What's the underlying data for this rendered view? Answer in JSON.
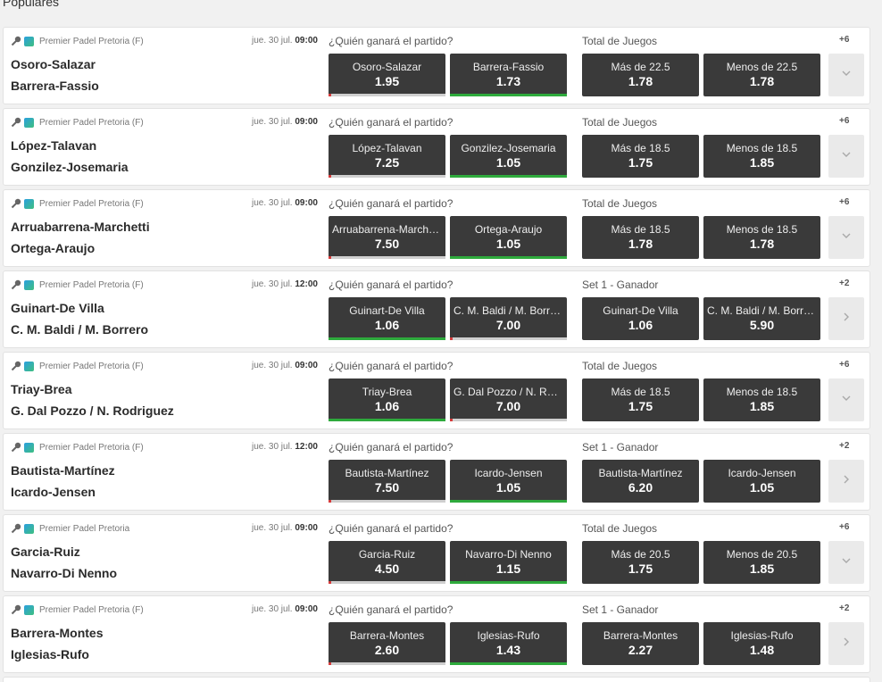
{
  "section_title": "Populares",
  "matches": [
    {
      "tournament": "Premier Padel Pretoria (F)",
      "date": "jue. 30 jul.",
      "time": "09:00",
      "team1": "Osoro-Salazar",
      "team2": "Barrera-Fassio",
      "market1": "¿Quién ganará el partido?",
      "market2": "Total de Juegos",
      "more": "+6",
      "expand_icon": "chevron-down-icon",
      "odds": [
        {
          "label": "Osoro-Salazar",
          "value": "1.95",
          "trend": "down"
        },
        {
          "label": "Barrera-Fassio",
          "value": "1.73",
          "trend": "up"
        },
        {
          "label": "Más de 22.5",
          "value": "1.78",
          "trend": ""
        },
        {
          "label": "Menos de 22.5",
          "value": "1.78",
          "trend": ""
        }
      ]
    },
    {
      "tournament": "Premier Padel Pretoria (F)",
      "date": "jue. 30 jul.",
      "time": "09:00",
      "team1": "López-Talavan",
      "team2": "Gonzilez-Josemaria",
      "market1": "¿Quién ganará el partido?",
      "market2": "Total de Juegos",
      "more": "+6",
      "expand_icon": "chevron-down-icon",
      "odds": [
        {
          "label": "López-Talavan",
          "value": "7.25",
          "trend": "down"
        },
        {
          "label": "Gonzilez-Josemaria",
          "value": "1.05",
          "trend": "up"
        },
        {
          "label": "Más de 18.5",
          "value": "1.75",
          "trend": ""
        },
        {
          "label": "Menos de 18.5",
          "value": "1.85",
          "trend": ""
        }
      ]
    },
    {
      "tournament": "Premier Padel Pretoria (F)",
      "date": "jue. 30 jul.",
      "time": "09:00",
      "team1": "Arruabarrena-Marchetti",
      "team2": "Ortega-Araujo",
      "market1": "¿Quién ganará el partido?",
      "market2": "Total de Juegos",
      "more": "+6",
      "expand_icon": "chevron-down-icon",
      "odds": [
        {
          "label": "Arruabarrena-Marchetti",
          "value": "7.50",
          "trend": "down"
        },
        {
          "label": "Ortega-Araujo",
          "value": "1.05",
          "trend": "up"
        },
        {
          "label": "Más de 18.5",
          "value": "1.78",
          "trend": ""
        },
        {
          "label": "Menos de 18.5",
          "value": "1.78",
          "trend": ""
        }
      ]
    },
    {
      "tournament": "Premier Padel Pretoria (F)",
      "date": "jue. 30 jul.",
      "time": "12:00",
      "team1": "Guinart-De Villa",
      "team2": "C. M. Baldi / M. Borrero",
      "market1": "¿Quién ganará el partido?",
      "market2": "Set 1 - Ganador",
      "more": "+2",
      "expand_icon": "chevron-right-icon",
      "odds": [
        {
          "label": "Guinart-De Villa",
          "value": "1.06",
          "trend": "up"
        },
        {
          "label": "C. M. Baldi / M. Borrero",
          "value": "7.00",
          "trend": "down"
        },
        {
          "label": "Guinart-De Villa",
          "value": "1.06",
          "trend": ""
        },
        {
          "label": "C. M. Baldi / M. Borrero",
          "value": "5.90",
          "trend": ""
        }
      ]
    },
    {
      "tournament": "Premier Padel Pretoria (F)",
      "date": "jue. 30 jul.",
      "time": "09:00",
      "team1": "Triay-Brea",
      "team2": "G. Dal Pozzo / N. Rodriguez",
      "market1": "¿Quién ganará el partido?",
      "market2": "Total de Juegos",
      "more": "+6",
      "expand_icon": "chevron-down-icon",
      "odds": [
        {
          "label": "Triay-Brea",
          "value": "1.06",
          "trend": "up"
        },
        {
          "label": "G. Dal Pozzo / N. Rod...",
          "value": "7.00",
          "trend": "down"
        },
        {
          "label": "Más de 18.5",
          "value": "1.75",
          "trend": ""
        },
        {
          "label": "Menos de 18.5",
          "value": "1.85",
          "trend": ""
        }
      ]
    },
    {
      "tournament": "Premier Padel Pretoria (F)",
      "date": "jue. 30 jul.",
      "time": "12:00",
      "team1": "Bautista-Martínez",
      "team2": "Icardo-Jensen",
      "market1": "¿Quién ganará el partido?",
      "market2": "Set 1 - Ganador",
      "more": "+2",
      "expand_icon": "chevron-right-icon",
      "odds": [
        {
          "label": "Bautista-Martínez",
          "value": "7.50",
          "trend": "down"
        },
        {
          "label": "Icardo-Jensen",
          "value": "1.05",
          "trend": "up"
        },
        {
          "label": "Bautista-Martínez",
          "value": "6.20",
          "trend": ""
        },
        {
          "label": "Icardo-Jensen",
          "value": "1.05",
          "trend": ""
        }
      ]
    },
    {
      "tournament": "Premier Padel Pretoria",
      "date": "jue. 30 jul.",
      "time": "09:00",
      "team1": "Garcia-Ruiz",
      "team2": "Navarro-Di Nenno",
      "market1": "¿Quién ganará el partido?",
      "market2": "Total de Juegos",
      "more": "+6",
      "expand_icon": "chevron-down-icon",
      "odds": [
        {
          "label": "Garcia-Ruiz",
          "value": "4.50",
          "trend": "down"
        },
        {
          "label": "Navarro-Di Nenno",
          "value": "1.15",
          "trend": "up"
        },
        {
          "label": "Más de 20.5",
          "value": "1.75",
          "trend": ""
        },
        {
          "label": "Menos de 20.5",
          "value": "1.85",
          "trend": ""
        }
      ]
    },
    {
      "tournament": "Premier Padel Pretoria (F)",
      "date": "jue. 30 jul.",
      "time": "09:00",
      "team1": "Barrera-Montes",
      "team2": "Iglesias-Rufo",
      "market1": "¿Quién ganará el partido?",
      "market2": "Set 1 - Ganador",
      "more": "+2",
      "expand_icon": "chevron-right-icon",
      "odds": [
        {
          "label": "Barrera-Montes",
          "value": "2.60",
          "trend": "down"
        },
        {
          "label": "Iglesias-Rufo",
          "value": "1.43",
          "trend": "up"
        },
        {
          "label": "Barrera-Montes",
          "value": "2.27",
          "trend": ""
        },
        {
          "label": "Iglesias-Rufo",
          "value": "1.48",
          "trend": ""
        }
      ]
    }
  ]
}
